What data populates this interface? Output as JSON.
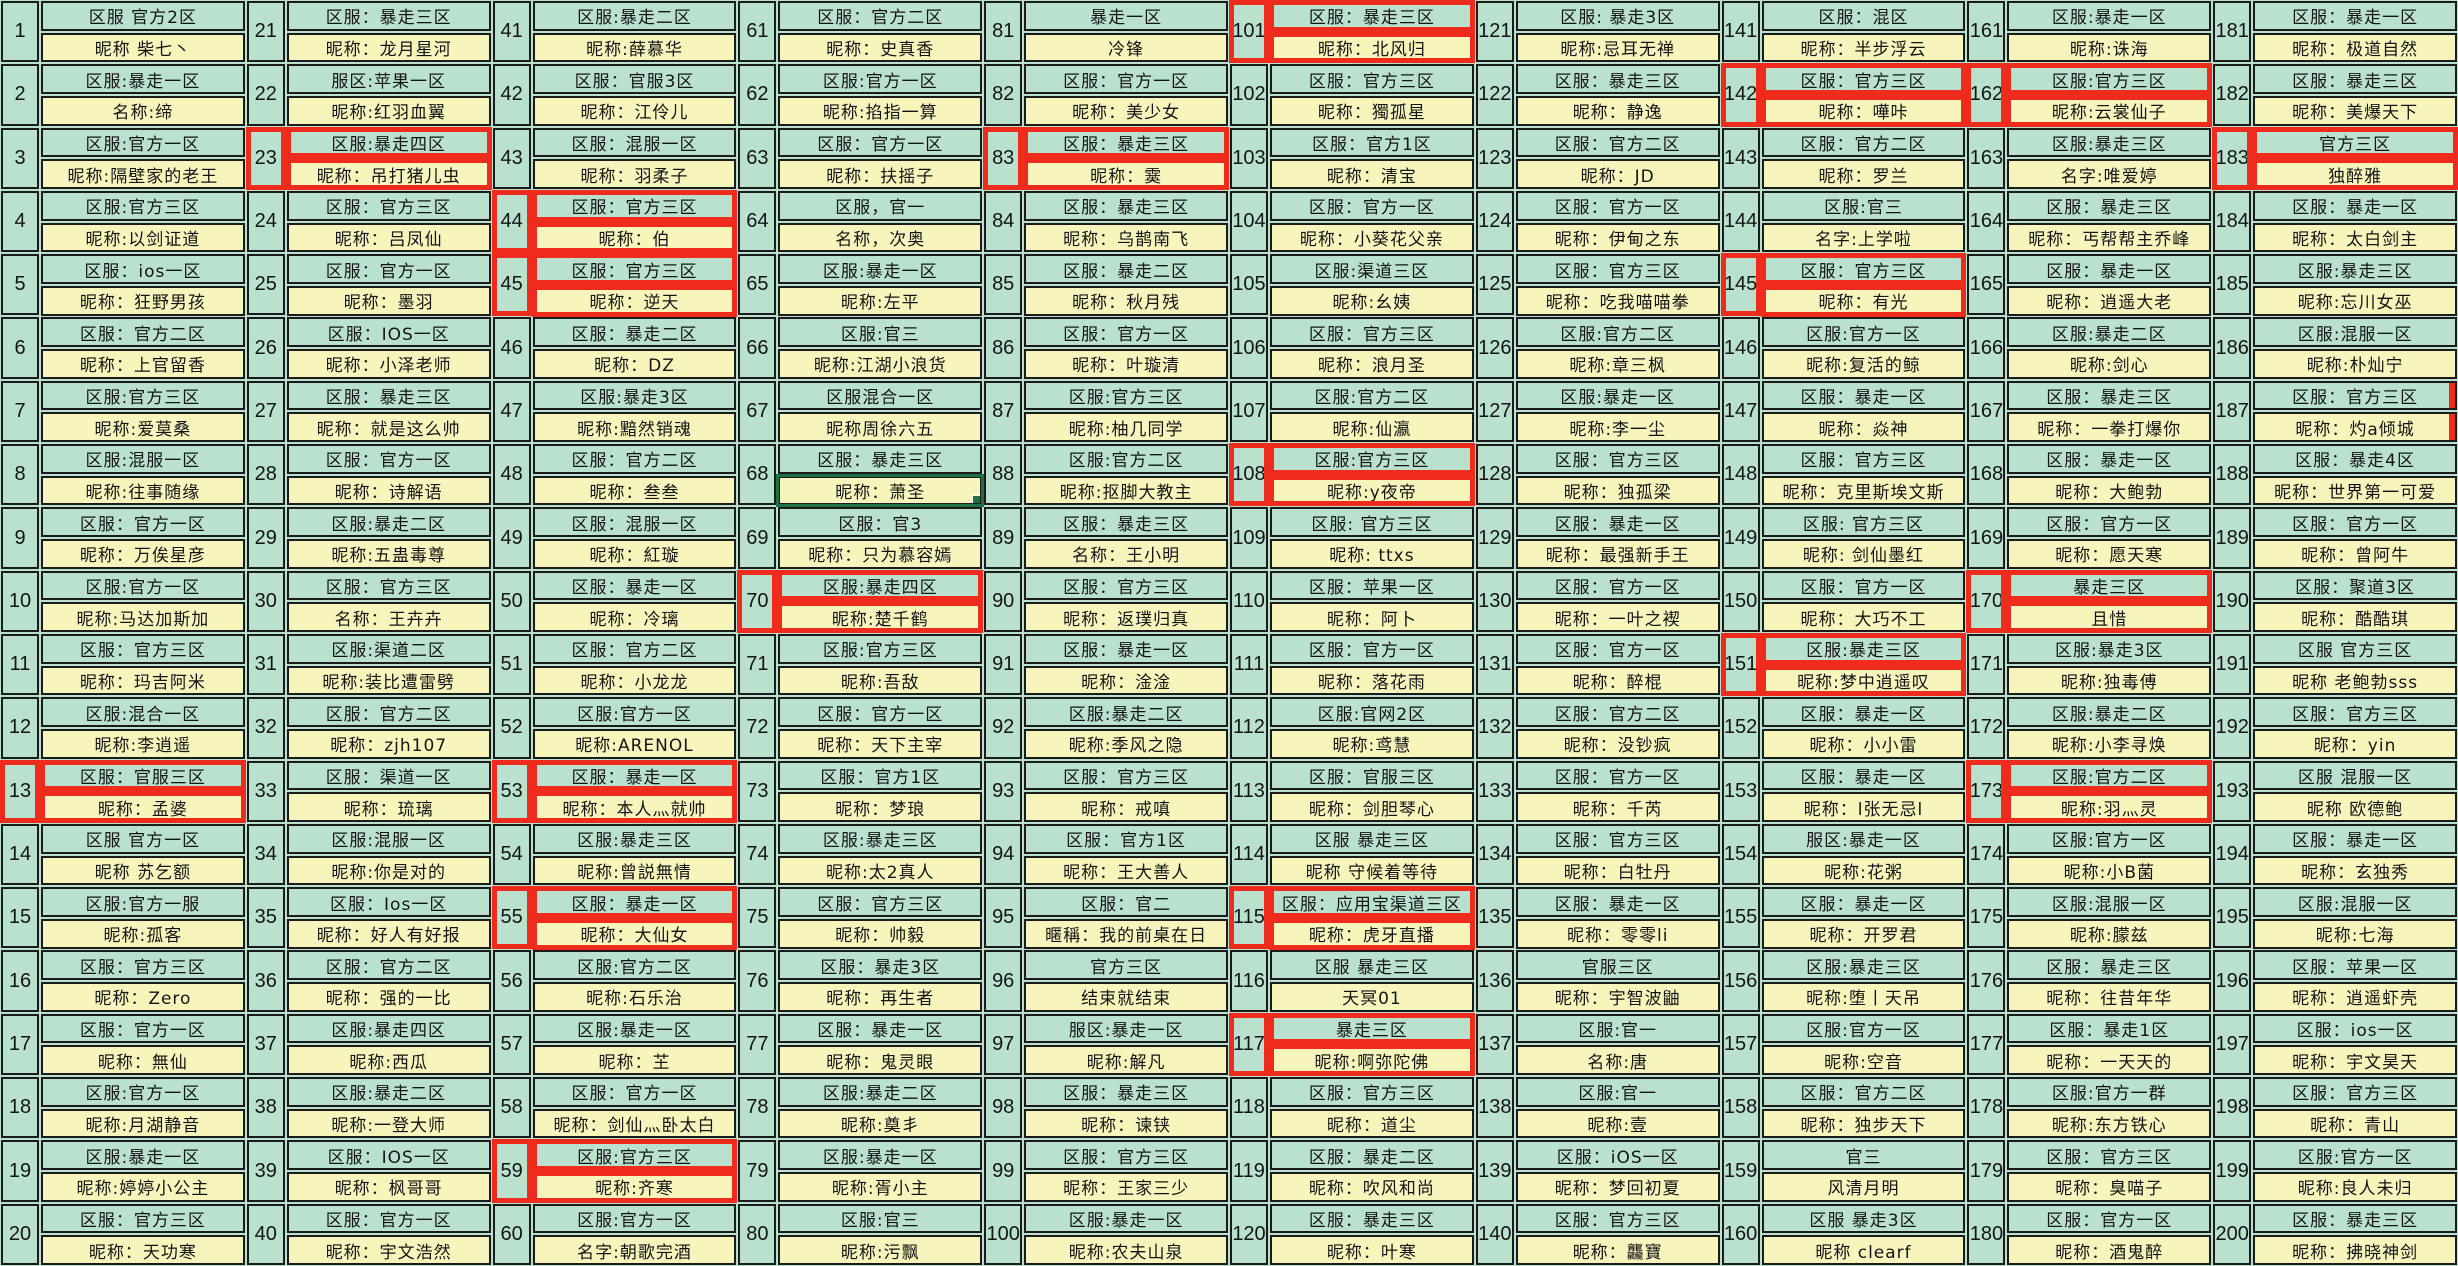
{
  "app": {
    "description_labels": {
      "region_prefix": "区服",
      "nickname_prefix": "昵称"
    },
    "colors": {
      "cell_green": "#b9e1ce",
      "cell_yellow": "#f8f5bc",
      "grid_line": "#1b1b1b",
      "highlight_red": "#ee2b1c",
      "selection_green": "#1e7145"
    }
  },
  "entries": [
    {
      "n": 1,
      "region": "区服 官方2区",
      "nick": "昵称 柴七丶"
    },
    {
      "n": 2,
      "region": "区服:暴走一区",
      "nick": "名称:缔"
    },
    {
      "n": 3,
      "region": "区服:官方一区",
      "nick": "昵称:隔壁家的老王"
    },
    {
      "n": 4,
      "region": "区服:官方三区",
      "nick": "昵称:以剑证道"
    },
    {
      "n": 5,
      "region": "区服：ios一区",
      "nick": "昵称：狂野男孩"
    },
    {
      "n": 6,
      "region": "区服：官方二区",
      "nick": "昵称：上官留香"
    },
    {
      "n": 7,
      "region": "区服:官方三区",
      "nick": "昵称:爱莫桑"
    },
    {
      "n": 8,
      "region": "区服:混服一区",
      "nick": "昵称:往事随缘"
    },
    {
      "n": 9,
      "region": "区服：官方一区",
      "nick": "昵称：万俟星彦"
    },
    {
      "n": 10,
      "region": "区服:官方一区",
      "nick": "昵称:马达加斯加"
    },
    {
      "n": 11,
      "region": "区服：官方三区",
      "nick": "昵称：玛吉阿米"
    },
    {
      "n": 12,
      "region": "区服:混合一区",
      "nick": "昵称:李逍遥"
    },
    {
      "n": 13,
      "region": "区服：官服三区",
      "nick": "昵称：孟婆",
      "mark": "red"
    },
    {
      "n": 14,
      "region": "区服 官方一区",
      "nick": "昵称 苏乞额"
    },
    {
      "n": 15,
      "region": "区服:官方一服",
      "nick": "昵称:孤客"
    },
    {
      "n": 16,
      "region": "区服：官方三区",
      "nick": "昵称：Zero"
    },
    {
      "n": 17,
      "region": "区服：官方一区",
      "nick": "昵称：無仙"
    },
    {
      "n": 18,
      "region": "区服:官方一区",
      "nick": "昵称:月湖静音"
    },
    {
      "n": 19,
      "region": "区服:暴走一区",
      "nick": "昵称:婷婷小公主"
    },
    {
      "n": 20,
      "region": "区服：官方三区",
      "nick": "昵称：天功寒"
    },
    {
      "n": 21,
      "region": "区服：暴走三区",
      "nick": "昵称：龙月星河"
    },
    {
      "n": 22,
      "region": "服区:苹果一区",
      "nick": "昵称:红羽血翼"
    },
    {
      "n": 23,
      "region": "区服:暴走四区",
      "nick": "昵称：吊打猪儿虫",
      "mark": "red"
    },
    {
      "n": 24,
      "region": "区服：官方三区",
      "nick": "昵称：吕凤仙"
    },
    {
      "n": 25,
      "region": "区服：官方一区",
      "nick": "昵称：墨羽"
    },
    {
      "n": 26,
      "region": "区服：IOS一区",
      "nick": "昵称：小泽老师"
    },
    {
      "n": 27,
      "region": "区服：暴走三区",
      "nick": "昵称：就是这么帅"
    },
    {
      "n": 28,
      "region": "区服：官方一区",
      "nick": "昵称：诗解语"
    },
    {
      "n": 29,
      "region": "区服:暴走二区",
      "nick": "昵称:五蛊毒尊"
    },
    {
      "n": 30,
      "region": "区服：官方三区",
      "nick": "名称：王卉卉"
    },
    {
      "n": 31,
      "region": "区服:渠道二区",
      "nick": "昵称:装比遭雷劈"
    },
    {
      "n": 32,
      "region": "区服：官方二区",
      "nick": "昵称：zjh107"
    },
    {
      "n": 33,
      "region": "区服：渠道一区",
      "nick": "昵称：琉璃"
    },
    {
      "n": 34,
      "region": "区服:混服一区",
      "nick": "昵称:你是对的"
    },
    {
      "n": 35,
      "region": "区服：Ios一区",
      "nick": "昵称：好人有好报"
    },
    {
      "n": 36,
      "region": "区服：官方二区",
      "nick": "昵称：强的一比"
    },
    {
      "n": 37,
      "region": "区服:暴走四区",
      "nick": "昵称:西瓜"
    },
    {
      "n": 38,
      "region": "区服:暴走二区",
      "nick": "昵称:一登大师"
    },
    {
      "n": 39,
      "region": "区服：IOS一区",
      "nick": "昵称：枫哥哥"
    },
    {
      "n": 40,
      "region": "区服：官方一区",
      "nick": "昵称：宇文浩然"
    },
    {
      "n": 41,
      "region": "区服:暴走二区",
      "nick": "昵称:薛慕华"
    },
    {
      "n": 42,
      "region": "区服：官服3区",
      "nick": "昵称：江伶儿"
    },
    {
      "n": 43,
      "region": "区服：混服一区",
      "nick": "昵称：羽柔子"
    },
    {
      "n": 44,
      "region": "区服：官方三区",
      "nick": "昵称：伯",
      "mark": "red"
    },
    {
      "n": 45,
      "region": "区服：官方三区",
      "nick": "昵称：逆天",
      "mark": "red"
    },
    {
      "n": 46,
      "region": "区服：暴走二区",
      "nick": "昵称：DZ"
    },
    {
      "n": 47,
      "region": "区服:暴走3区",
      "nick": "昵称:黯然销魂"
    },
    {
      "n": 48,
      "region": "区服：官方二区",
      "nick": "昵称：叁叁"
    },
    {
      "n": 49,
      "region": "区服：混服一区",
      "nick": "昵称：紅璇"
    },
    {
      "n": 50,
      "region": "区服：暴走一区",
      "nick": "昵称：冷璃"
    },
    {
      "n": 51,
      "region": "区服：官方二区",
      "nick": "昵称：小龙龙"
    },
    {
      "n": 52,
      "region": "区服:官方一区",
      "nick": "昵称:ARENOL"
    },
    {
      "n": 53,
      "region": "区服：暴走一区",
      "nick": "昵称：本人灬就帅",
      "mark": "red"
    },
    {
      "n": 54,
      "region": "区服:暴走三区",
      "nick": "昵称:曾説無情"
    },
    {
      "n": 55,
      "region": "区服：暴走一区",
      "nick": "昵称：大仙女",
      "mark": "red"
    },
    {
      "n": 56,
      "region": "区服:官方二区",
      "nick": "昵称:石乐治"
    },
    {
      "n": 57,
      "region": "区服:暴走一区",
      "nick": "昵称：芏"
    },
    {
      "n": 58,
      "region": "区服：官方一区",
      "nick": "昵称：剑仙灬卧太白"
    },
    {
      "n": 59,
      "region": "区服:官方三区",
      "nick": "昵称:齐寒",
      "mark": "red"
    },
    {
      "n": 60,
      "region": "区服:官方一区",
      "nick": "名字:朝歌完酒"
    },
    {
      "n": 61,
      "region": "区服：官方二区",
      "nick": "昵称：史真香"
    },
    {
      "n": 62,
      "region": "区服:官方一区",
      "nick": "昵称:掐指一算"
    },
    {
      "n": 63,
      "region": "区服：官方一区",
      "nick": "昵称：扶摇子"
    },
    {
      "n": 64,
      "region": "区服，官一",
      "nick": "名称，次奥"
    },
    {
      "n": 65,
      "region": "区服:暴走一区",
      "nick": "昵称:左平"
    },
    {
      "n": 66,
      "region": "区服:官三",
      "nick": "昵称:江湖小浪货"
    },
    {
      "n": 67,
      "region": "区服混合一区",
      "nick": "昵称周徐六五"
    },
    {
      "n": 68,
      "region": "区服：暴走三区",
      "nick": "昵称：萧圣",
      "mark": "selected"
    },
    {
      "n": 69,
      "region": "区服：官3",
      "nick": "昵称：只为慕容嫣"
    },
    {
      "n": 70,
      "region": "区服:暴走四区",
      "nick": "昵称:楚千鹤",
      "mark": "red"
    },
    {
      "n": 71,
      "region": "区服:官方三区",
      "nick": "昵称:吾敌"
    },
    {
      "n": 72,
      "region": "区服：官方一区",
      "nick": "昵称：天下主宰"
    },
    {
      "n": 73,
      "region": "区服：官方1区",
      "nick": "昵称：梦琅"
    },
    {
      "n": 74,
      "region": "区服:暴走三区",
      "nick": "昵称:太2真人"
    },
    {
      "n": 75,
      "region": "区服：官方三区",
      "nick": "昵称：帅毅"
    },
    {
      "n": 76,
      "region": "区服：暴走3区",
      "nick": "昵称：再生者"
    },
    {
      "n": 77,
      "region": "区服：暴走一区",
      "nick": "昵称：鬼灵眼"
    },
    {
      "n": 78,
      "region": "区服:暴走二区",
      "nick": "昵称:奠丯"
    },
    {
      "n": 79,
      "region": "区服:暴走一区",
      "nick": "昵称:胥小主"
    },
    {
      "n": 80,
      "region": "区服:官三",
      "nick": "昵称:污飘"
    },
    {
      "n": 81,
      "region": "暴走一区",
      "nick": "冷锋"
    },
    {
      "n": 82,
      "region": "区服：官方一区",
      "nick": "昵称：美少女"
    },
    {
      "n": 83,
      "region": "区服：暴走三区",
      "nick": "昵称：霙",
      "mark": "red"
    },
    {
      "n": 84,
      "region": "区服：暴走三区",
      "nick": "昵称：乌鹊南飞"
    },
    {
      "n": 85,
      "region": "区服：暴走二区",
      "nick": "昵称：秋月残"
    },
    {
      "n": 86,
      "region": "区服：官方一区",
      "nick": "昵称：叶璇清"
    },
    {
      "n": 87,
      "region": "区服:官方三区",
      "nick": "昵称:柚几同学"
    },
    {
      "n": 88,
      "region": "区服:官方二区",
      "nick": "昵称:抠脚大教主"
    },
    {
      "n": 89,
      "region": "区服：暴走三区",
      "nick": "名称：王小明"
    },
    {
      "n": 90,
      "region": "区服：官方三区",
      "nick": "昵称：返璞归真"
    },
    {
      "n": 91,
      "region": "区服：暴走一区",
      "nick": "昵称：淦淦"
    },
    {
      "n": 92,
      "region": "区服:暴走二区",
      "nick": "昵称:季风之隐"
    },
    {
      "n": 93,
      "region": "区服：官方三区",
      "nick": "昵称：戒嗔"
    },
    {
      "n": 94,
      "region": "区服：官方1区",
      "nick": "昵称：王大善人"
    },
    {
      "n": 95,
      "region": "区服：官二",
      "nick": "暱稱：我的前桌在日"
    },
    {
      "n": 96,
      "region": "官方三区",
      "nick": "结束就结束"
    },
    {
      "n": 97,
      "region": "服区:暴走一区",
      "nick": "昵称:解凡"
    },
    {
      "n": 98,
      "region": "区服：暴走三区",
      "nick": "昵称：谏铗"
    },
    {
      "n": 99,
      "region": "区服：官方三区",
      "nick": "昵称：王家三少"
    },
    {
      "n": 100,
      "region": "区服:暴走一区",
      "nick": "昵称:农夫山泉"
    },
    {
      "n": 101,
      "region": "区服：暴走三区",
      "nick": "昵称：北风归",
      "mark": "red"
    },
    {
      "n": 102,
      "region": "区服：官方三区",
      "nick": "昵称：獨孤星"
    },
    {
      "n": 103,
      "region": "区服：官方1区",
      "nick": "昵称：清宝"
    },
    {
      "n": 104,
      "region": "区服：官方一区",
      "nick": "昵称：小葵花父亲"
    },
    {
      "n": 105,
      "region": "区服:渠道三区",
      "nick": "昵称:幺姨"
    },
    {
      "n": 106,
      "region": "区服：官方三区",
      "nick": "昵称：浪月圣"
    },
    {
      "n": 107,
      "region": "区服:官方二区",
      "nick": "昵称:仙瀛"
    },
    {
      "n": 108,
      "region": "区服:官方三区",
      "nick": "昵称:y夜帝",
      "mark": "red"
    },
    {
      "n": 109,
      "region": "区服: 官方三区",
      "nick": "昵称: ttxs"
    },
    {
      "n": 110,
      "region": "区服：苹果一区",
      "nick": "昵称：阿卜"
    },
    {
      "n": 111,
      "region": "区服：官方一区",
      "nick": "昵称：落花雨"
    },
    {
      "n": 112,
      "region": "区服:官网2区",
      "nick": "昵称:鸢慧"
    },
    {
      "n": 113,
      "region": "区服：官服三区",
      "nick": "昵称：剑胆琴心"
    },
    {
      "n": 114,
      "region": "区服 暴走三区",
      "nick": "昵称 守候着等待"
    },
    {
      "n": 115,
      "region": "区服：应用宝渠道三区",
      "nick": "昵称：虎牙直播",
      "mark": "red"
    },
    {
      "n": 116,
      "region": "区服 暴走三区",
      "nick": "天冥01"
    },
    {
      "n": 117,
      "region": "暴走三区",
      "nick": "昵称:啊弥陀佛",
      "mark": "red"
    },
    {
      "n": 118,
      "region": "区服：官方三区",
      "nick": "昵称：道尘"
    },
    {
      "n": 119,
      "region": "区服：暴走二区",
      "nick": "昵称：吹风和尚"
    },
    {
      "n": 120,
      "region": "区服：暴走三区",
      "nick": "昵称：叶寒"
    },
    {
      "n": 121,
      "region": "区服: 暴走3区",
      "nick": "昵称:忌耳无禅"
    },
    {
      "n": 122,
      "region": "区服：暴走三区",
      "nick": "昵称：静逸"
    },
    {
      "n": 123,
      "region": "区服：官方二区",
      "nick": "昵称：JD"
    },
    {
      "n": 124,
      "region": "区服：官方一区",
      "nick": "昵称：伊甸之东"
    },
    {
      "n": 125,
      "region": "区服：官方三区",
      "nick": "昵称：吃我喵喵拳"
    },
    {
      "n": 126,
      "region": "区服:官方二区",
      "nick": "昵称:章三枫"
    },
    {
      "n": 127,
      "region": "区服:暴走一区",
      "nick": "昵称:李一尘"
    },
    {
      "n": 128,
      "region": "区服：官方三区",
      "nick": "昵称：独孤梁"
    },
    {
      "n": 129,
      "region": "区服：暴走一区",
      "nick": "昵称：最强新手王"
    },
    {
      "n": 130,
      "region": "区服：官方一区",
      "nick": "昵称：一叶之褉"
    },
    {
      "n": 131,
      "region": "区服：官方一区",
      "nick": "昵称：醉棍"
    },
    {
      "n": 132,
      "region": "区服：官方二区",
      "nick": "昵称：没钞疯"
    },
    {
      "n": 133,
      "region": "区服：官方一区",
      "nick": "昵称：千芮"
    },
    {
      "n": 134,
      "region": "区服：官方三区",
      "nick": "昵称：白牡丹"
    },
    {
      "n": 135,
      "region": "区服：暴走一区",
      "nick": "昵称：零零li"
    },
    {
      "n": 136,
      "region": "官服三区",
      "nick": "昵称：宇智波鼬"
    },
    {
      "n": 137,
      "region": "区服:官一",
      "nick": "名称:唐"
    },
    {
      "n": 138,
      "region": "区服:官一",
      "nick": "昵称:壹"
    },
    {
      "n": 139,
      "region": "区服：iOS一区",
      "nick": "昵称：梦回初夏"
    },
    {
      "n": 140,
      "region": "区服：官方三区",
      "nick": "昵称：龘寶"
    },
    {
      "n": 141,
      "region": "区服：混区",
      "nick": "昵称：半步浮云"
    },
    {
      "n": 142,
      "region": "区服：官方三区",
      "nick": "昵称：嘩咔",
      "mark": "red"
    },
    {
      "n": 143,
      "region": "区服：官方二区",
      "nick": "昵称：罗兰"
    },
    {
      "n": 144,
      "region": "区服:官三",
      "nick": "名字:上学啦"
    },
    {
      "n": 145,
      "region": "区服：官方三区",
      "nick": "昵称：有光",
      "mark": "red"
    },
    {
      "n": 146,
      "region": "区服:官方一区",
      "nick": "昵称:复活的鲸"
    },
    {
      "n": 147,
      "region": "区服：暴走一区",
      "nick": "昵称：焱神"
    },
    {
      "n": 148,
      "region": "区服：官方三区",
      "nick": "昵称：克里斯埃文斯"
    },
    {
      "n": 149,
      "region": "区服: 官方三区",
      "nick": "昵称: 剑仙墨红"
    },
    {
      "n": 150,
      "region": "区服：官方一区",
      "nick": "昵称：大巧不工"
    },
    {
      "n": 151,
      "region": "区服:暴走三区",
      "nick": "昵称:梦中逍遥叹",
      "mark": "red"
    },
    {
      "n": 152,
      "region": "区服：暴走一区",
      "nick": "昵称：小小雷"
    },
    {
      "n": 153,
      "region": "区服：暴走一区",
      "nick": "昵称：l张无忌l"
    },
    {
      "n": 154,
      "region": "服区:暴走一区",
      "nick": "昵称:花粥"
    },
    {
      "n": 155,
      "region": "区服：暴走一区",
      "nick": "昵称：开罗君"
    },
    {
      "n": 156,
      "region": "区服:暴走三区",
      "nick": "昵称:堕丨天吊"
    },
    {
      "n": 157,
      "region": "区服:官方一区",
      "nick": "昵称:空音"
    },
    {
      "n": 158,
      "region": "区服：官方二区",
      "nick": "昵称：独步天下"
    },
    {
      "n": 159,
      "region": "官三",
      "nick": "风清月明"
    },
    {
      "n": 160,
      "region": "区服 暴走3区",
      "nick": "昵称 clearf"
    },
    {
      "n": 161,
      "region": "区服:暴走一区",
      "nick": "昵称:诛海"
    },
    {
      "n": 162,
      "region": "区服:官方三区",
      "nick": "昵称:云裳仙子",
      "mark": "red"
    },
    {
      "n": 163,
      "region": "区服:暴走三区",
      "nick": "名字:唯爱婷"
    },
    {
      "n": 164,
      "region": "区服：暴走三区",
      "nick": "昵称：丐帮帮主乔峰"
    },
    {
      "n": 165,
      "region": "区服：暴走一区",
      "nick": "昵称：逍遥大老"
    },
    {
      "n": 166,
      "region": "区服:暴走二区",
      "nick": "昵称:剑心"
    },
    {
      "n": 167,
      "region": "区服：暴走三区",
      "nick": "昵称：一拳打爆你"
    },
    {
      "n": 168,
      "region": "区服：暴走一区",
      "nick": "昵称：大鲍勃"
    },
    {
      "n": 169,
      "region": "区服：官方一区",
      "nick": "昵称：愿天寒"
    },
    {
      "n": 170,
      "region": "暴走三区",
      "nick": "且惜",
      "mark": "red"
    },
    {
      "n": 171,
      "region": "区服:暴走3区",
      "nick": "昵称:独毒傅"
    },
    {
      "n": 172,
      "region": "区服:暴走二区",
      "nick": "昵称:小李寻焕"
    },
    {
      "n": 173,
      "region": "区服:官方二区",
      "nick": "昵称:羽灬灵",
      "mark": "red"
    },
    {
      "n": 174,
      "region": "区服:官方一区",
      "nick": "昵称:小B菌"
    },
    {
      "n": 175,
      "region": "区服:混服一区",
      "nick": "昵称:朦兹"
    },
    {
      "n": 176,
      "region": "区服：暴走三区",
      "nick": "昵称：往昔年华"
    },
    {
      "n": 177,
      "region": "区服：暴走1区",
      "nick": "昵称：一天天的"
    },
    {
      "n": 178,
      "region": "区服:官方一群",
      "nick": "昵称:东方铁心"
    },
    {
      "n": 179,
      "region": "区服：官方三区",
      "nick": "昵称：臭喵子"
    },
    {
      "n": 180,
      "region": "区服：官方一区",
      "nick": "昵称：酒鬼醉"
    },
    {
      "n": 181,
      "region": "区服：暴走一区",
      "nick": "昵称：极道自然"
    },
    {
      "n": 182,
      "region": "区服：暴走三区",
      "nick": "昵称：美爆天下"
    },
    {
      "n": 183,
      "region": "官方三区",
      "nick": "独醉雅",
      "mark": "red"
    },
    {
      "n": 184,
      "region": "区服：暴走一区",
      "nick": "昵称：太白剑主"
    },
    {
      "n": 185,
      "region": "区服:暴走三区",
      "nick": "昵称:忘川女巫"
    },
    {
      "n": 186,
      "region": "区服:混服一区",
      "nick": "昵称:朴灿宁"
    },
    {
      "n": 187,
      "region": "区服：官方三区",
      "nick": "昵称：灼a倾城",
      "mark": "red-right"
    },
    {
      "n": 188,
      "region": "区服：暴走4区",
      "nick": "昵称：世界第一可爱"
    },
    {
      "n": 189,
      "region": "区服：官方一区",
      "nick": "昵称：曾阿牛"
    },
    {
      "n": 190,
      "region": "区服：聚道3区",
      "nick": "昵称：酷酷琪"
    },
    {
      "n": 191,
      "region": "区服 官方三区",
      "nick": "昵称 老鲍勃sss"
    },
    {
      "n": 192,
      "region": "区服：官方三区",
      "nick": "昵称：yin"
    },
    {
      "n": 193,
      "region": "区服 混服一区",
      "nick": "昵称 欧德鲍"
    },
    {
      "n": 194,
      "region": "区服：暴走一区",
      "nick": "昵称：玄独秀"
    },
    {
      "n": 195,
      "region": "区服:混服一区",
      "nick": "昵称:七海"
    },
    {
      "n": 196,
      "region": "区服：苹果一区",
      "nick": "昵称：逍遥虾壳"
    },
    {
      "n": 197,
      "region": "区服：ios一区",
      "nick": "昵称：宇文昊天"
    },
    {
      "n": 198,
      "region": "区服：官方三区",
      "nick": "昵称：青山"
    },
    {
      "n": 199,
      "region": "区服:官方一区",
      "nick": "昵称:良人未归"
    },
    {
      "n": 200,
      "region": "区服：暴走三区",
      "nick": "昵称：拂晓神剑"
    }
  ]
}
